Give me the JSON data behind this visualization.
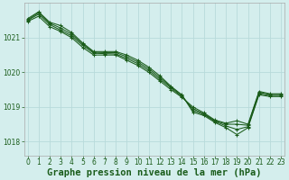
{
  "background_color": "#d4eeed",
  "grid_color": "#b8dada",
  "line_color": "#1a5c1a",
  "xlabel": "Graphe pression niveau de la mer (hPa)",
  "xlabel_fontsize": 7.5,
  "tick_fontsize": 5.5,
  "ylim": [
    1017.6,
    1022.0
  ],
  "xlim": [
    -0.3,
    23.3
  ],
  "yticks": [
    1018,
    1019,
    1020,
    1021
  ],
  "xticks": [
    0,
    1,
    2,
    3,
    4,
    5,
    6,
    7,
    8,
    9,
    10,
    11,
    12,
    13,
    14,
    15,
    16,
    17,
    18,
    19,
    20,
    21,
    22,
    23
  ],
  "series": [
    [
      1021.55,
      1021.75,
      1021.45,
      1021.35,
      1021.15,
      1020.85,
      1020.6,
      1020.6,
      1020.6,
      1020.5,
      1020.35,
      1020.15,
      1019.9,
      1019.6,
      1019.35,
      1018.85,
      1018.75,
      1018.55,
      1018.4,
      1018.2,
      1018.4,
      1019.35,
      1019.3,
      1019.3
    ],
    [
      1021.52,
      1021.72,
      1021.42,
      1021.28,
      1021.1,
      1020.82,
      1020.58,
      1020.57,
      1020.57,
      1020.45,
      1020.3,
      1020.1,
      1019.85,
      1019.58,
      1019.33,
      1018.9,
      1018.78,
      1018.58,
      1018.45,
      1018.35,
      1018.43,
      1019.38,
      1019.33,
      1019.33
    ],
    [
      1021.5,
      1021.68,
      1021.38,
      1021.22,
      1021.05,
      1020.78,
      1020.55,
      1020.54,
      1020.53,
      1020.4,
      1020.25,
      1020.05,
      1019.8,
      1019.55,
      1019.3,
      1018.95,
      1018.8,
      1018.6,
      1018.5,
      1018.5,
      1018.47,
      1019.42,
      1019.36,
      1019.36
    ],
    [
      1021.47,
      1021.62,
      1021.32,
      1021.18,
      1021.0,
      1020.72,
      1020.5,
      1020.5,
      1020.5,
      1020.35,
      1020.2,
      1020.0,
      1019.75,
      1019.5,
      1019.28,
      1019.0,
      1018.83,
      1018.62,
      1018.53,
      1018.6,
      1018.5,
      1019.45,
      1019.38,
      1019.38
    ]
  ]
}
